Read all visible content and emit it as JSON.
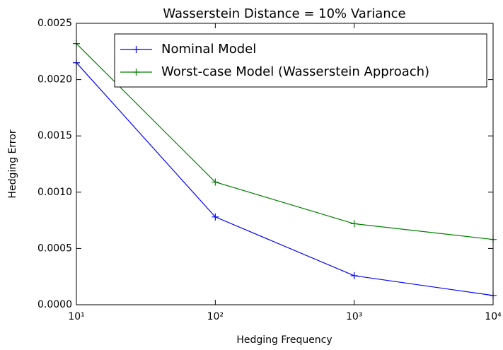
{
  "chart_data": {
    "type": "line",
    "title": "Wasserstein Distance = 10% Variance",
    "xlabel": "Hedging Frequency",
    "ylabel": "Hedging Error",
    "x": [
      10,
      100,
      1000,
      10000
    ],
    "xscale": "log",
    "xlim": [
      10,
      10000
    ],
    "xticks": [
      {
        "value": 10,
        "label": "10¹"
      },
      {
        "value": 100,
        "label": "10²"
      },
      {
        "value": 1000,
        "label": "10³"
      },
      {
        "value": 10000,
        "label": "10⁴"
      }
    ],
    "ylim": [
      0,
      0.0025
    ],
    "yticks": [
      {
        "value": 0,
        "label": "0.0000"
      },
      {
        "value": 0.0005,
        "label": "0.0005"
      },
      {
        "value": 0.001,
        "label": "0.0010"
      },
      {
        "value": 0.0015,
        "label": "0.0015"
      },
      {
        "value": 0.002,
        "label": "0.0020"
      },
      {
        "value": 0.0025,
        "label": "0.0025"
      }
    ],
    "legend": "upper right",
    "series": [
      {
        "name": "Nominal Model",
        "color": "#0000ff",
        "values": [
          0.00215,
          0.00078,
          0.000258,
          8.2e-05
        ]
      },
      {
        "name": "Worst-case Model (Wasserstein Approach)",
        "color": "#008000",
        "values": [
          0.00232,
          0.00109,
          0.00072,
          0.00058
        ]
      }
    ]
  }
}
